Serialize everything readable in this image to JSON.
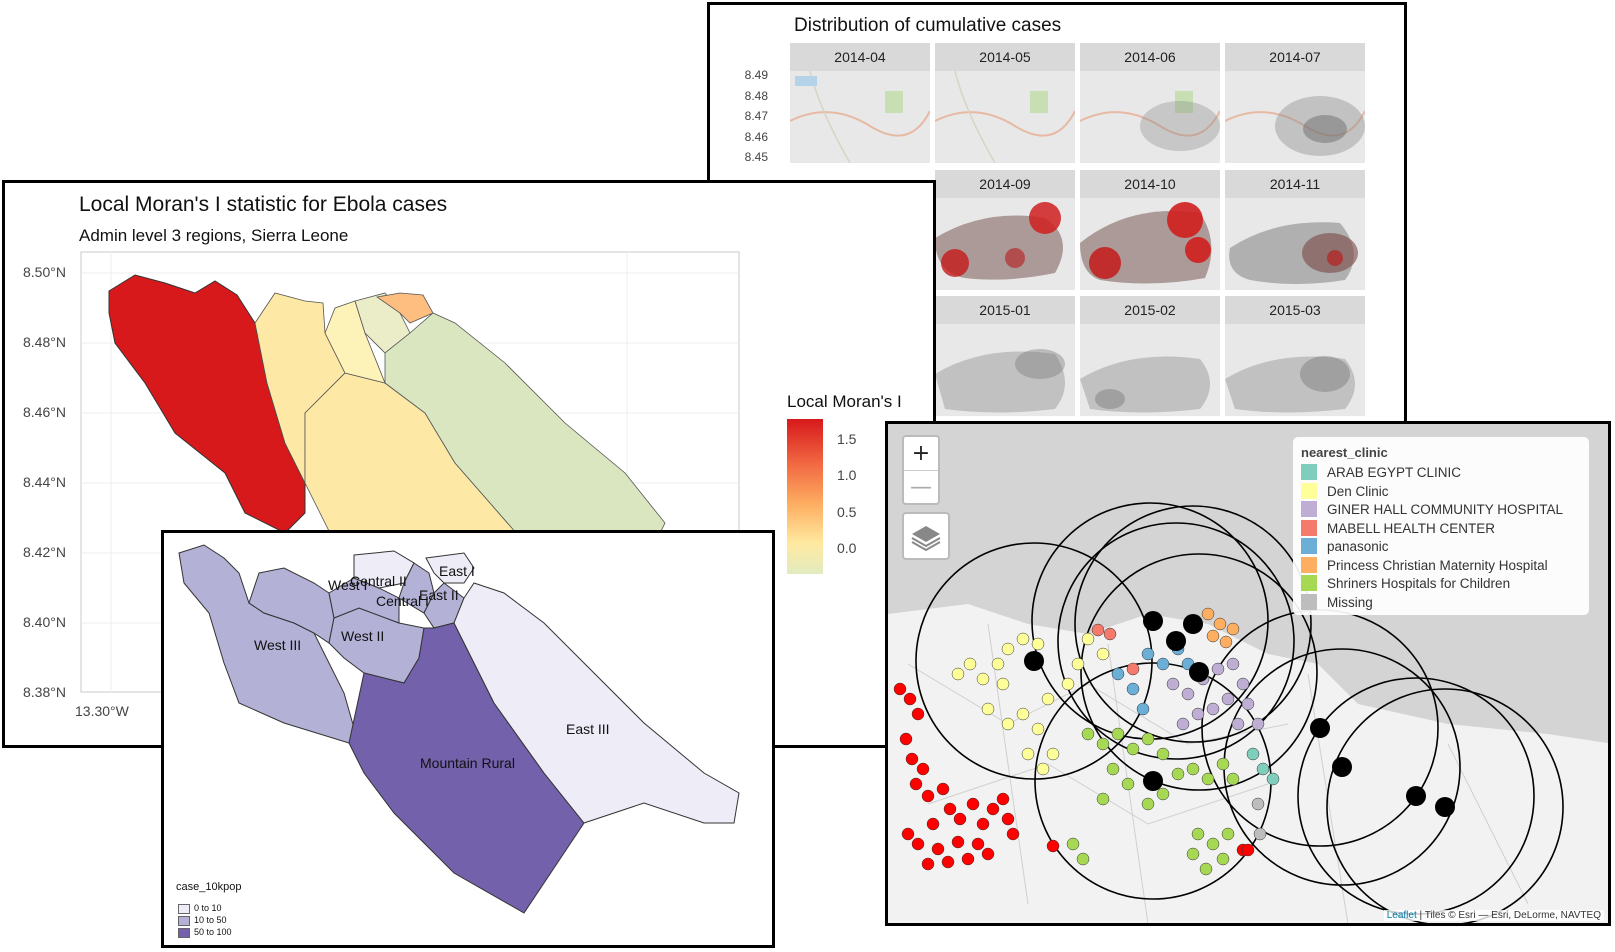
{
  "facets": {
    "title": "Distribution of cumulative cases",
    "y_ticks": [
      "8.49",
      "8.48",
      "8.47",
      "8.46",
      "8.45"
    ],
    "panels": [
      "2014-04",
      "2014-05",
      "2014-06",
      "2014-07",
      "2014-09",
      "2014-10",
      "2014-11",
      "2015-01",
      "2015-02",
      "2015-03"
    ]
  },
  "moran": {
    "title": "Local Moran's I statistic for Ebola cases",
    "subtitle": "Admin level 3 regions, Sierra Leone",
    "y_ticks": [
      "8.50°N",
      "8.48°N",
      "8.46°N",
      "8.44°N",
      "8.42°N",
      "8.40°N",
      "8.38°N"
    ],
    "x_ticks": [
      "13.30°W"
    ],
    "legend_title": "Local Moran's I",
    "legend_ticks": [
      "1.5",
      "1.0",
      "0.5",
      "0.0"
    ],
    "colors": {
      "high": "#d7191c",
      "mid": "#fdae61",
      "low": "#ffffbf",
      "green": "#d9e8c0"
    }
  },
  "cases": {
    "regions": [
      "West I",
      "Central II",
      "East I",
      "Central I",
      "East II",
      "West III",
      "West II",
      "East III",
      "Mountain Rural"
    ],
    "legend_title": "case_10kpop",
    "legend": [
      {
        "label": "0 to 10",
        "color": "#eeecf6"
      },
      {
        "label": "10 to 50",
        "color": "#b3b1d6"
      },
      {
        "label": "50 to 100",
        "color": "#7461ab"
      }
    ]
  },
  "leaflet": {
    "zoom_in": "+",
    "zoom_out": "—",
    "legend_title": "nearest_clinic",
    "legend": [
      {
        "label": "ARAB EGYPT CLINIC",
        "color": "#7fcdbb"
      },
      {
        "label": "Den Clinic",
        "color": "#ffff99"
      },
      {
        "label": "GINER HALL COMMUNITY HOSPITAL",
        "color": "#beaed4"
      },
      {
        "label": "MABELL HEALTH CENTER",
        "color": "#f47a6b"
      },
      {
        "label": "panasonic",
        "color": "#6baed6"
      },
      {
        "label": "Princess Christian Maternity Hospital",
        "color": "#fdae61"
      },
      {
        "label": "Shriners Hospitals for Children",
        "color": "#a6d854"
      },
      {
        "label": "Missing",
        "color": "#bdbdbd"
      }
    ],
    "attribution_link": "Leaflet",
    "attribution_text": " | Tiles © Esri — Esri, DeLorme, NAVTEQ"
  }
}
